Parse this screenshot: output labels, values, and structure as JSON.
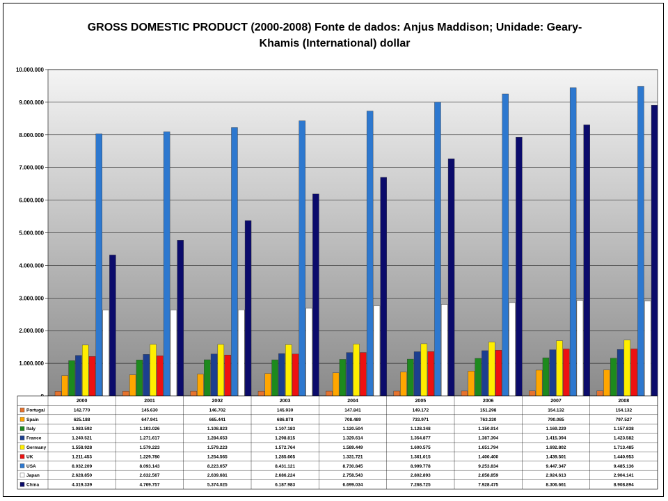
{
  "chart_data": {
    "type": "bar",
    "title_line1": "GROSS DOMESTIC PRODUCT (2000-2008) Fonte de dados: Anjus Maddison; Unidade: Geary-",
    "title_line2": "Khamis (International) dollar",
    "categories": [
      "2000",
      "2001",
      "2002",
      "2003",
      "2004",
      "2005",
      "2006",
      "2007",
      "2008"
    ],
    "ylim": [
      0,
      10000000
    ],
    "yticks": [
      "0",
      "1.000.000",
      "2.000.000",
      "3.000.000",
      "4.000.000",
      "5.000.000",
      "6.000.000",
      "7.000.000",
      "8.000.000",
      "9.000.000",
      "10.000.000"
    ],
    "grid": true,
    "legend": "table-bottom",
    "series": [
      {
        "name": "Portugal",
        "color": "#e6732e",
        "values": [
          142770,
          145630,
          146702,
          145930,
          147841,
          149172,
          151298,
          154132,
          154132
        ],
        "labels": [
          "142.770",
          "145.630",
          "146.702",
          "145.930",
          "147.841",
          "149.172",
          "151.298",
          "154.132",
          "154.132"
        ]
      },
      {
        "name": "Spain",
        "color": "#ffa600",
        "values": [
          625188,
          647941,
          665441,
          686878,
          708489,
          733971,
          763330,
          790085,
          797527
        ],
        "labels": [
          "625.188",
          "647.941",
          "665.441",
          "686.878",
          "708.489",
          "733.971",
          "763.330",
          "790.085",
          "797.527"
        ]
      },
      {
        "name": "Italy",
        "color": "#1d8a1d",
        "values": [
          1083592,
          1103026,
          1108823,
          1107183,
          1120504,
          1128348,
          1150914,
          1169229,
          1157838
        ],
        "labels": [
          "1.083.592",
          "1.103.026",
          "1.108.823",
          "1.107.183",
          "1.120.504",
          "1.128.348",
          "1.150.914",
          "1.169.229",
          "1.157.838"
        ]
      },
      {
        "name": "France",
        "color": "#1c3f8f",
        "values": [
          1240521,
          1271617,
          1284653,
          1298815,
          1329614,
          1354877,
          1387394,
          1415394,
          1423582
        ],
        "labels": [
          "1.240.521",
          "1.271.617",
          "1.284.653",
          "1.298.815",
          "1.329.614",
          "1.354.877",
          "1.387.394",
          "1.415.394",
          "1.423.582"
        ]
      },
      {
        "name": "Germany",
        "color": "#ffee00",
        "values": [
          1558928,
          1579223,
          1579223,
          1572764,
          1589449,
          1600575,
          1651794,
          1692802,
          1713485
        ],
        "labels": [
          "1.558.928",
          "1.579.223",
          "1.579.223",
          "1.572.764",
          "1.589.449",
          "1.600.575",
          "1.651.794",
          "1.692.802",
          "1.713.485"
        ]
      },
      {
        "name": "UK",
        "color": "#ee1111",
        "values": [
          1211453,
          1229780,
          1254565,
          1285665,
          1331721,
          1361015,
          1400400,
          1439501,
          1440953
        ],
        "labels": [
          "1.211.453",
          "1.229.780",
          "1.254.565",
          "1.285.665",
          "1.331.721",
          "1.361.015",
          "1.400.400",
          "1.439.501",
          "1.440.953"
        ]
      },
      {
        "name": "USA",
        "color": "#2d78cf",
        "values": [
          8032209,
          8093143,
          8223657,
          8431121,
          8730845,
          8999778,
          9253834,
          9447347,
          9485136
        ],
        "labels": [
          "8.032.209",
          "8.093.143",
          "8.223.657",
          "8.431.121",
          "8.730.845",
          "8.999.778",
          "9.253.834",
          "9.447.347",
          "9.485.136"
        ]
      },
      {
        "name": "Japan",
        "color": "#ffffff",
        "values": [
          2628850,
          2632567,
          2639681,
          2686224,
          2758543,
          2802893,
          2858859,
          2924613,
          2904141
        ],
        "labels": [
          "2.628.850",
          "2.632.567",
          "2.639.681",
          "2.686.224",
          "2.758.543",
          "2.802.893",
          "2.858.859",
          "2.924.613",
          "2.904.141"
        ]
      },
      {
        "name": "China",
        "color": "#0b0b6b",
        "values": [
          4319339,
          4769757,
          5374025,
          6187983,
          6699034,
          7268725,
          7928475,
          8306661,
          8908894
        ],
        "labels": [
          "4.319.339",
          "4.769.757",
          "5.374.025",
          "6.187.983",
          "6.699.034",
          "7.268.725",
          "7.928.475",
          "8.306.661",
          "8.908.894"
        ]
      }
    ]
  }
}
